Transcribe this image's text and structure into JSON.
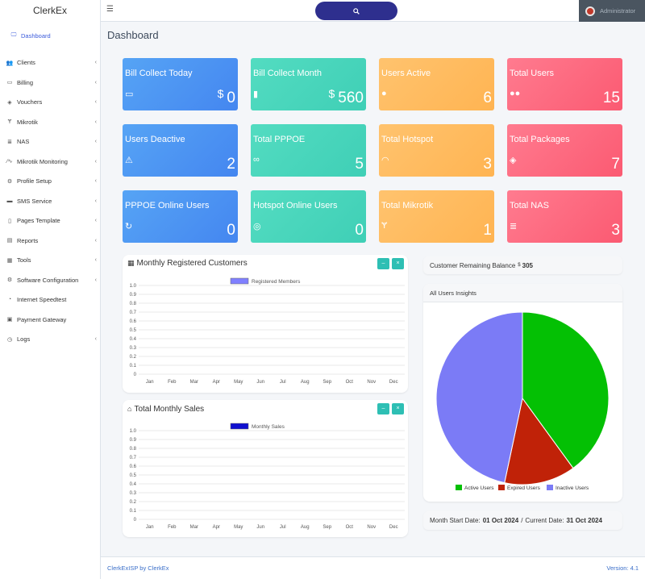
{
  "app": {
    "name": "ClerkEx"
  },
  "topbar": {
    "user_name": "Administrator"
  },
  "page_title": "Dashboard",
  "sidebar": {
    "items": [
      {
        "label": "Dashboard",
        "icon": "monitor-icon",
        "glyph": "🖵",
        "active": true,
        "has_children": false
      },
      {
        "label": "Clients",
        "icon": "users-icon",
        "glyph": "👥",
        "has_children": true
      },
      {
        "label": "Billing",
        "icon": "card-icon",
        "glyph": "▭",
        "has_children": true
      },
      {
        "label": "Vouchers",
        "icon": "ticket-icon",
        "glyph": "◈",
        "has_children": true
      },
      {
        "label": "Mikrotik",
        "icon": "fork-icon",
        "glyph": "Ɏ",
        "has_children": true
      },
      {
        "label": "NAS",
        "icon": "server-icon",
        "glyph": "≣",
        "has_children": true
      },
      {
        "label": "Mikrotik Monitoring",
        "icon": "pulse-icon",
        "glyph": "⁄∿",
        "has_children": true
      },
      {
        "label": "Profile Setup",
        "icon": "gear-icon",
        "glyph": "⚙",
        "has_children": true
      },
      {
        "label": "SMS Service",
        "icon": "chat-icon",
        "glyph": "▬",
        "has_children": true
      },
      {
        "label": "Pages Template",
        "icon": "file-icon",
        "glyph": "▯",
        "has_children": true
      },
      {
        "label": "Reports",
        "icon": "report-icon",
        "glyph": "▤",
        "has_children": true
      },
      {
        "label": "Tools",
        "icon": "tools-icon",
        "glyph": "▦",
        "has_children": true
      },
      {
        "label": "Software Configuration",
        "icon": "cog-icon",
        "glyph": "⚙",
        "has_children": true
      },
      {
        "label": "Internet Speedtest",
        "icon": "gauge-icon",
        "glyph": "◔",
        "has_children": false
      },
      {
        "label": "Payment Gateway",
        "icon": "money-icon",
        "glyph": "▣",
        "has_children": false
      },
      {
        "label": "Logs",
        "icon": "clock-icon",
        "glyph": "◷",
        "has_children": true
      }
    ]
  },
  "stats": [
    {
      "title": "Bill Collect Today",
      "value": "0",
      "currency": "$",
      "icon": "credit-card-icon",
      "glyph": "▭",
      "color": "blue"
    },
    {
      "title": "Bill Collect Month",
      "value": "560",
      "currency": "$",
      "icon": "bar-chart-icon",
      "glyph": "▮",
      "color": "teal"
    },
    {
      "title": "Users Active",
      "value": "6",
      "icon": "user-icon",
      "glyph": "●",
      "color": "orange"
    },
    {
      "title": "Total Users",
      "value": "15",
      "icon": "users-icon",
      "glyph": "●●",
      "color": "red"
    },
    {
      "title": "Users Deactive",
      "value": "2",
      "icon": "warning-icon",
      "glyph": "⚠",
      "color": "blue"
    },
    {
      "title": "Total PPPOE",
      "value": "5",
      "icon": "link-icon",
      "glyph": "∞",
      "color": "teal"
    },
    {
      "title": "Total Hotspot",
      "value": "3",
      "icon": "wifi-icon",
      "glyph": "◠",
      "color": "orange"
    },
    {
      "title": "Total Packages",
      "value": "7",
      "icon": "tag-icon",
      "glyph": "◈",
      "color": "red"
    },
    {
      "title": "PPPOE Online Users",
      "value": "0",
      "icon": "sync-icon",
      "glyph": "↻",
      "color": "blue"
    },
    {
      "title": "Hotspot Online Users",
      "value": "0",
      "icon": "broadcast-icon",
      "glyph": "◎",
      "color": "teal"
    },
    {
      "title": "Total Mikrotik",
      "value": "1",
      "icon": "fork-icon",
      "glyph": "Ɏ",
      "color": "orange"
    },
    {
      "title": "Total NAS",
      "value": "3",
      "icon": "database-icon",
      "glyph": "≣",
      "color": "red"
    }
  ],
  "panels": {
    "registered": {
      "title": "Monthly Registered Customers",
      "icon": "grid-icon",
      "minimize": "–",
      "close": "×"
    },
    "sales": {
      "title": "Total Monthly Sales",
      "icon": "inbox-icon",
      "minimize": "–",
      "close": "×"
    },
    "balance": {
      "label": "Customer Remaining Balance",
      "currency": "$",
      "value": "305"
    },
    "insights": {
      "title": "All Users Insights"
    },
    "dates": {
      "start_label": "Month Start Date:",
      "start_value": "01 Oct 2024",
      "sep": "/",
      "current_label": "Current Date:",
      "current_value": "31 Oct 2024"
    }
  },
  "footer": {
    "left": "ClerkExISP by ClerkEx",
    "right": "Version: 4.1"
  },
  "colors": {
    "blue": "#4a8ff2",
    "teal": "#48d7bd",
    "orange": "#ffbc60",
    "red": "#fd6880",
    "active_users": "#04c004",
    "expired_users": "#c02208",
    "inactive_users": "#7b7bf6",
    "registered_members": "#8080ff",
    "monthly_sales": "#1010d0"
  },
  "chart_data": [
    {
      "type": "bar",
      "title": "Monthly Registered Customers",
      "categories": [
        "Jan",
        "Feb",
        "Mar",
        "Apr",
        "May",
        "Jun",
        "Jul",
        "Aug",
        "Sep",
        "Oct",
        "Nov",
        "Dec"
      ],
      "series": [
        {
          "name": "Registered Members",
          "values": [
            0,
            0,
            0,
            0,
            0,
            0,
            0,
            0,
            0,
            0,
            0,
            0
          ]
        }
      ],
      "ylim": [
        0,
        1.0
      ],
      "yticks": [
        "1.0",
        "0.9",
        "0.8",
        "0.7",
        "0.6",
        "0.5",
        "0.4",
        "0.3",
        "0.2",
        "0.1",
        "0"
      ],
      "grid": true,
      "legend": "top"
    },
    {
      "type": "bar",
      "title": "Total Monthly Sales",
      "categories": [
        "Jan",
        "Feb",
        "Mar",
        "Apr",
        "May",
        "Jun",
        "Jul",
        "Aug",
        "Sep",
        "Oct",
        "Nov",
        "Dec"
      ],
      "series": [
        {
          "name": "Monthly Sales",
          "values": [
            0,
            0,
            0,
            0,
            0,
            0,
            0,
            0,
            0,
            0,
            0,
            0
          ]
        }
      ],
      "ylim": [
        0,
        1.0
      ],
      "yticks": [
        "1.0",
        "0.9",
        "0.8",
        "0.7",
        "0.6",
        "0.5",
        "0.4",
        "0.3",
        "0.2",
        "0.1",
        "0"
      ],
      "grid": true,
      "legend": "top"
    },
    {
      "type": "pie",
      "title": "All Users Insights",
      "labels": [
        "Active Users",
        "Expired Users",
        "Inactive Users"
      ],
      "values": [
        6,
        2,
        7
      ],
      "legend": "bottom"
    }
  ]
}
